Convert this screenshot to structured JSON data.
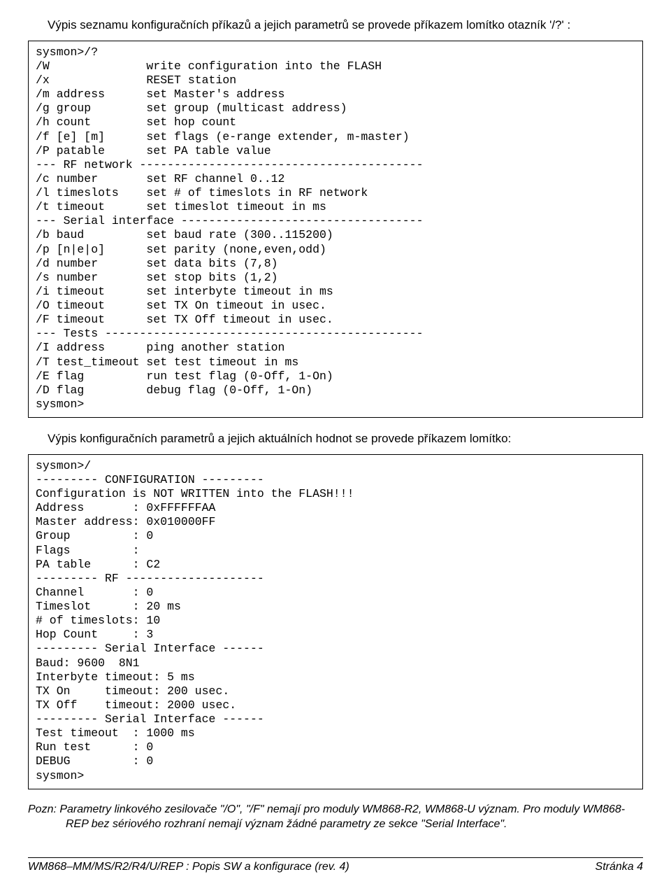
{
  "intro1": "Výpis seznamu konfiguračních příkazů a jejich parametrů se provede příkazem lomítko otazník '/?' :",
  "block1": "sysmon>/?\n/W              write configuration into the FLASH\n/x              RESET station\n/m address      set Master's address\n/g group        set group (multicast address)\n/h count        set hop count\n/f [e] [m]      set flags (e-range extender, m-master)\n/P patable      set PA table value\n--- RF network -----------------------------------------\n/c number       set RF channel 0..12\n/l timeslots    set # of timeslots in RF network\n/t timeout      set timeslot timeout in ms\n--- Serial interface -----------------------------------\n/b baud         set baud rate (300..115200)\n/p [n|e|o]      set parity (none,even,odd)\n/d number       set data bits (7,8)\n/s number       set stop bits (1,2)\n/i timeout      set interbyte timeout in ms\n/O timeout      set TX On timeout in usec.\n/F timeout      set TX Off timeout in usec.\n--- Tests ----------------------------------------------\n/I address      ping another station\n/T test_timeout set test timeout in ms\n/E flag         run test flag (0-Off, 1-On)\n/D flag         debug flag (0-Off, 1-On)\nsysmon>",
  "intro2": "Výpis konfiguračních parametrů a jejich aktuálních hodnot se provede příkazem lomítko:",
  "block2": "sysmon>/\n--------- CONFIGURATION ---------\nConfiguration is NOT WRITTEN into the FLASH!!!\nAddress       : 0xFFFFFFAA\nMaster address: 0x010000FF\nGroup         : 0\nFlags         :\nPA table      : C2\n--------- RF --------------------\nChannel       : 0\nTimeslot      : 20 ms\n# of timeslots: 10\nHop Count     : 3\n--------- Serial Interface ------\nBaud: 9600  8N1\nInterbyte timeout: 5 ms\nTX On     timeout: 200 usec.\nTX Off    timeout: 2000 usec.\n--------- Serial Interface ------\nTest timeout  : 1000 ms\nRun test      : 0\nDEBUG         : 0\nsysmon>",
  "note": "Pozn: Parametry linkového zesilovače \"/O\", \"/F\" nemají pro moduly WM868-R2, WM868-U význam. Pro moduly WM868-REP bez sériového rozhraní nemají význam žádné parametry ze sekce \"Serial Interface\".",
  "footer_left": "WM868–MM/MS/R2/R4/U/REP : Popis SW a konfigurace (rev. 4)",
  "footer_right": "Stránka 4"
}
